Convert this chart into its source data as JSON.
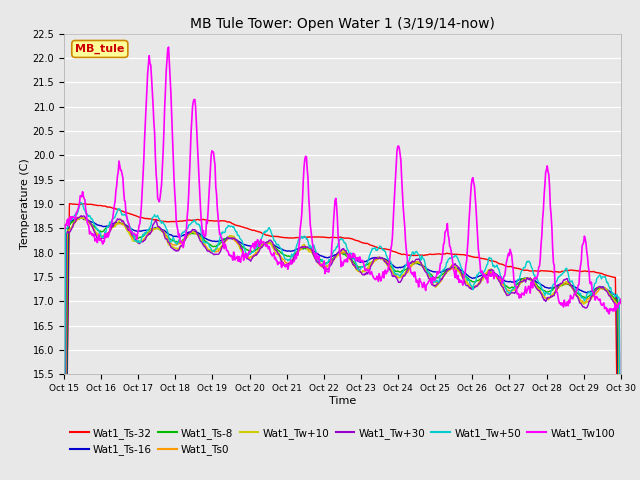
{
  "title": "MB Tule Tower: Open Water 1 (3/19/14-now)",
  "xlabel": "Time",
  "ylabel": "Temperature (C)",
  "ylim": [
    15.5,
    22.5
  ],
  "yticks": [
    15.5,
    16.0,
    16.5,
    17.0,
    17.5,
    18.0,
    18.5,
    19.0,
    19.5,
    20.0,
    20.5,
    21.0,
    21.5,
    22.0,
    22.5
  ],
  "xtick_labels": [
    "Oct 15",
    "Oct 16",
    "Oct 17",
    "Oct 18",
    "Oct 19",
    "Oct 20",
    "Oct 21",
    "Oct 22",
    "Oct 23",
    "Oct 24",
    "Oct 25",
    "Oct 26",
    "Oct 27",
    "Oct 28",
    "Oct 29",
    "Oct 30"
  ],
  "series_labels": [
    "Wat1_Ts-32",
    "Wat1_Ts-16",
    "Wat1_Ts-8",
    "Wat1_Ts0",
    "Wat1_Tw+10",
    "Wat1_Tw+30",
    "Wat1_Tw+50",
    "Wat1_Tw100"
  ],
  "series_colors": [
    "#ff0000",
    "#0000cc",
    "#00bb00",
    "#ff9900",
    "#cccc00",
    "#9900cc",
    "#00cccc",
    "#ff00ff"
  ],
  "series_linewidths": [
    1.0,
    1.0,
    1.0,
    1.0,
    1.0,
    1.0,
    1.0,
    1.2
  ],
  "plot_bg_color": "#e8e8e8",
  "annotation_text": "MB_tule",
  "annotation_color": "#cc0000",
  "annotation_bg": "#ffff99",
  "annotation_edge": "#cc8800"
}
